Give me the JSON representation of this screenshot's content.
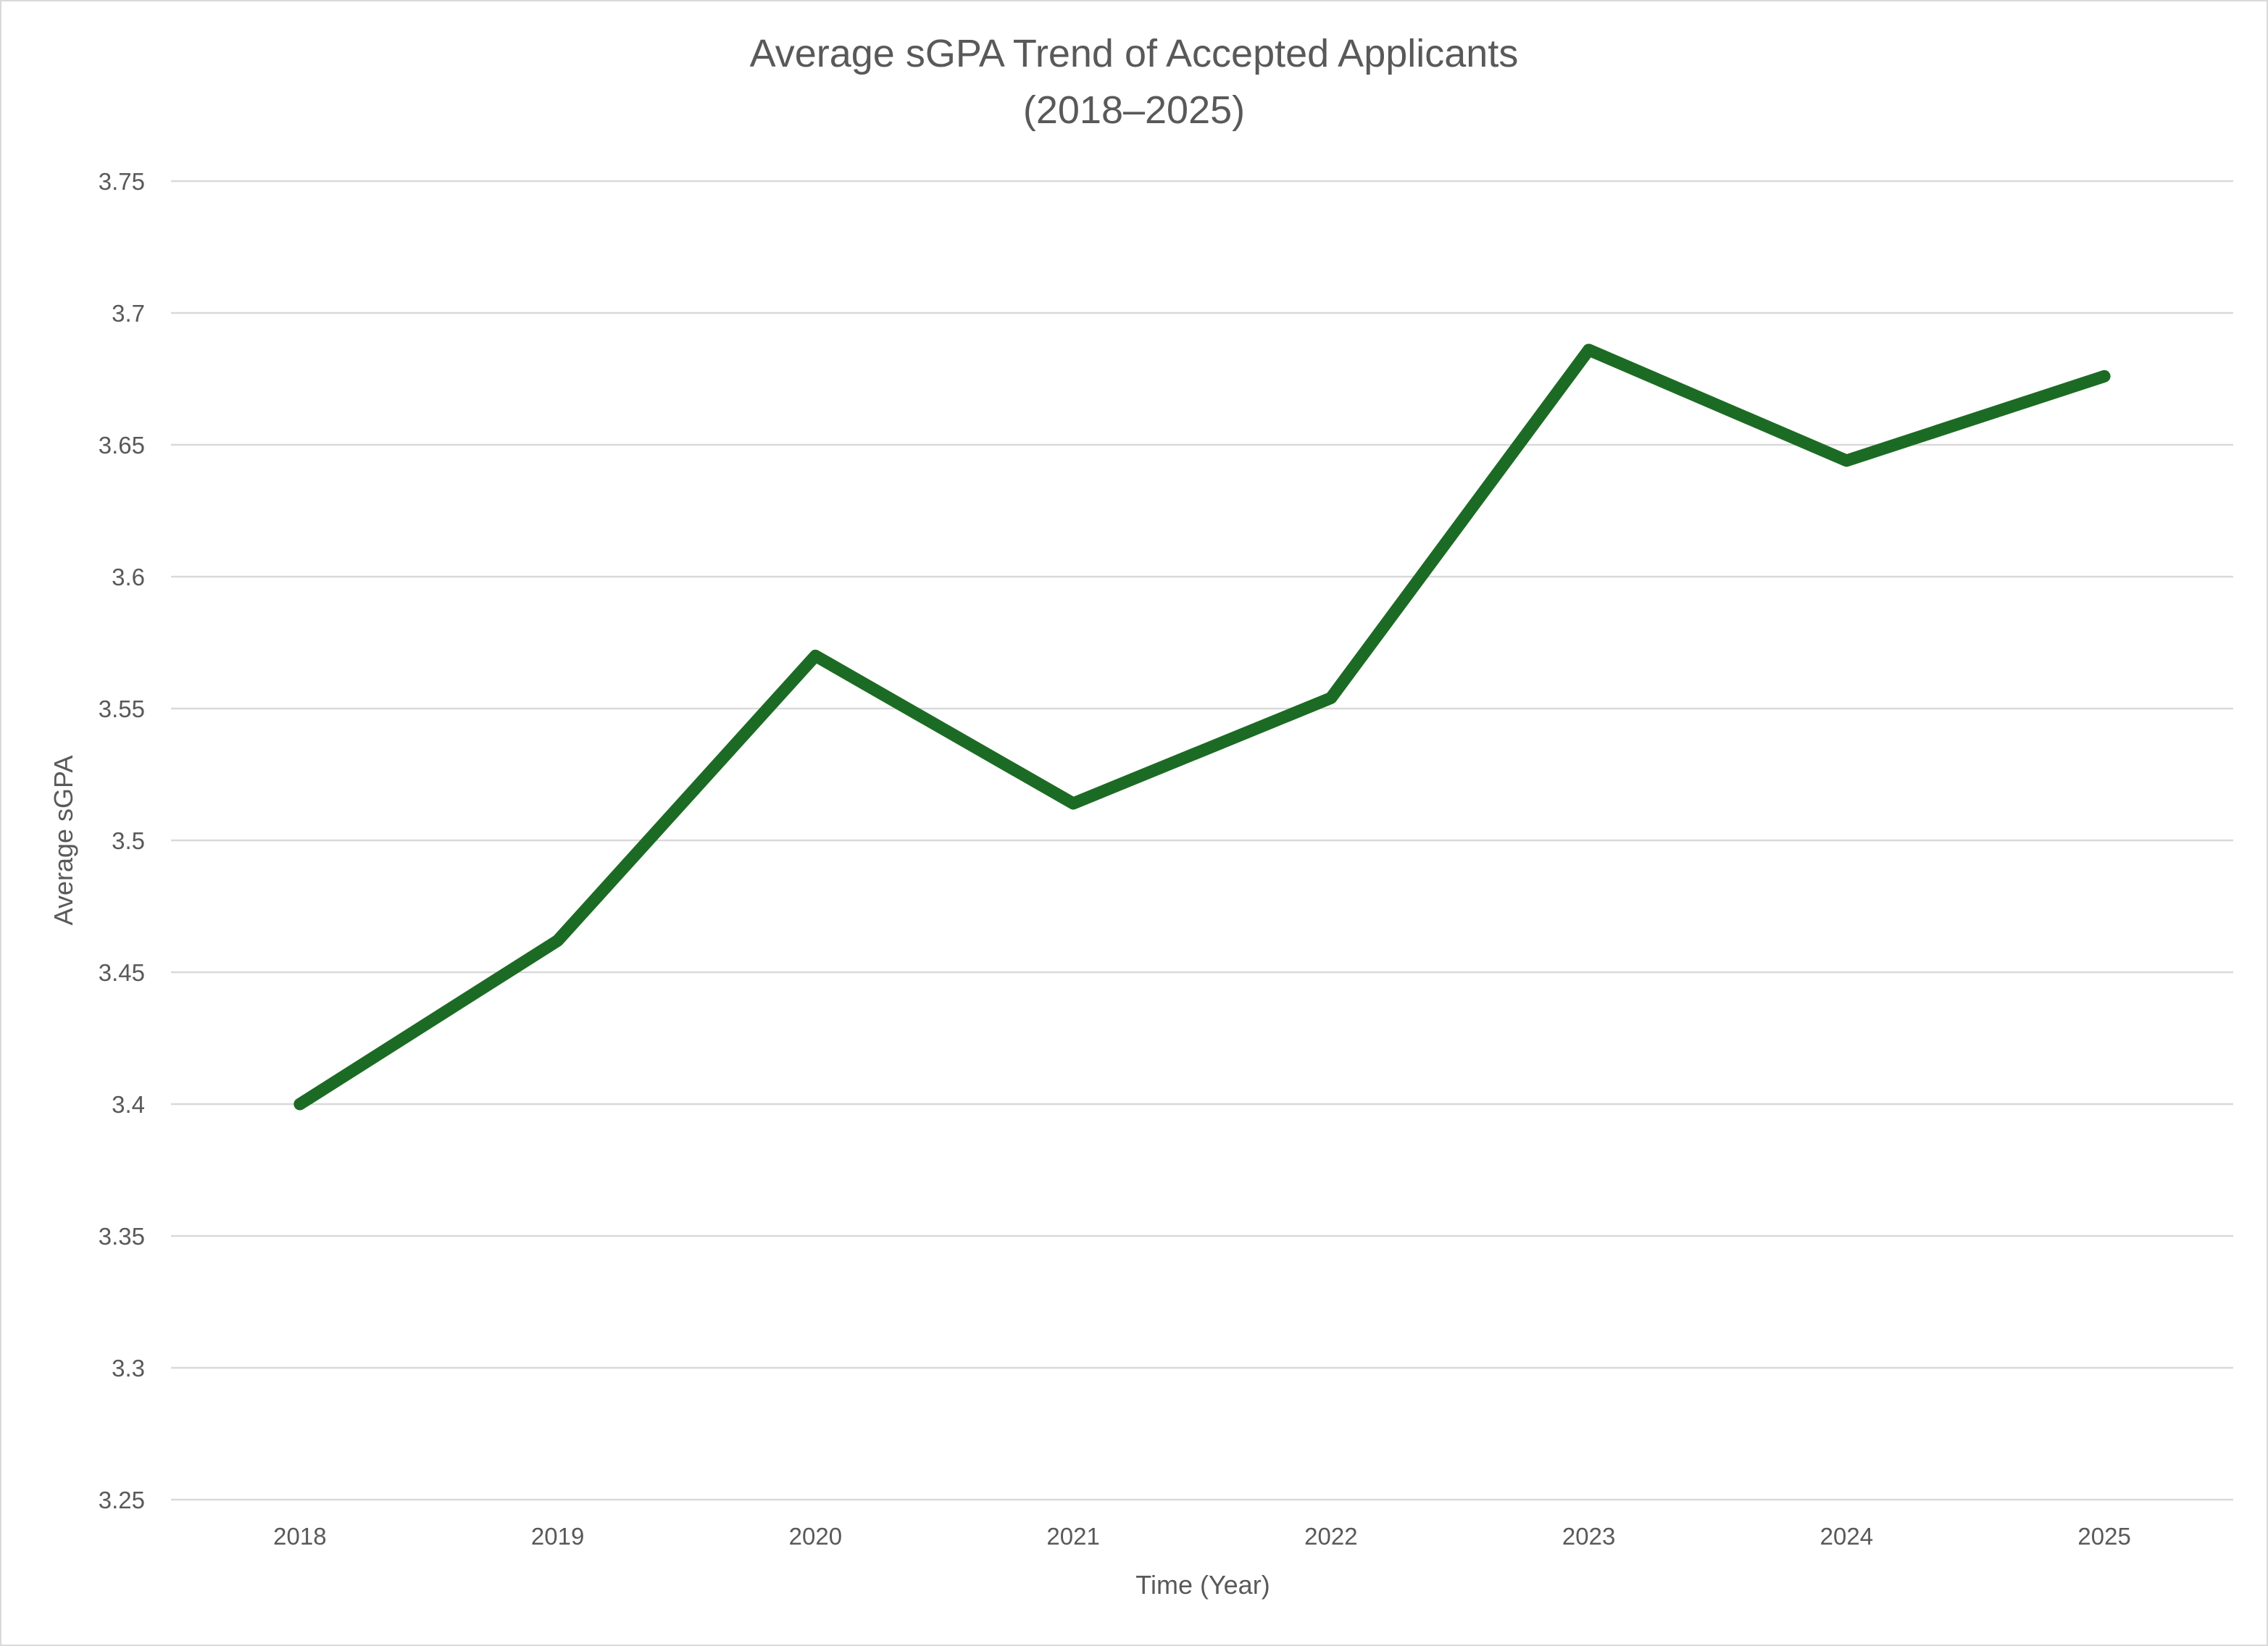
{
  "chart_data": {
    "type": "line",
    "title": "Average sGPA Trend of Accepted Applicants",
    "subtitle": "(2018–2025)",
    "xlabel": "Time (Year)",
    "ylabel": "Average sGPA",
    "categories": [
      "2018",
      "2019",
      "2020",
      "2021",
      "2022",
      "2023",
      "2024",
      "2025"
    ],
    "series": [
      {
        "values": [
          3.4,
          3.462,
          3.57,
          3.514,
          3.554,
          3.686,
          3.644,
          3.676
        ],
        "color": "#1c6b24"
      }
    ],
    "ylim": [
      3.25,
      3.75
    ],
    "yticks": [
      "3.25",
      "3.3",
      "3.35",
      "3.4",
      "3.45",
      "3.5",
      "3.55",
      "3.6",
      "3.65",
      "3.7",
      "3.75"
    ],
    "grid": true,
    "legend": "none"
  }
}
